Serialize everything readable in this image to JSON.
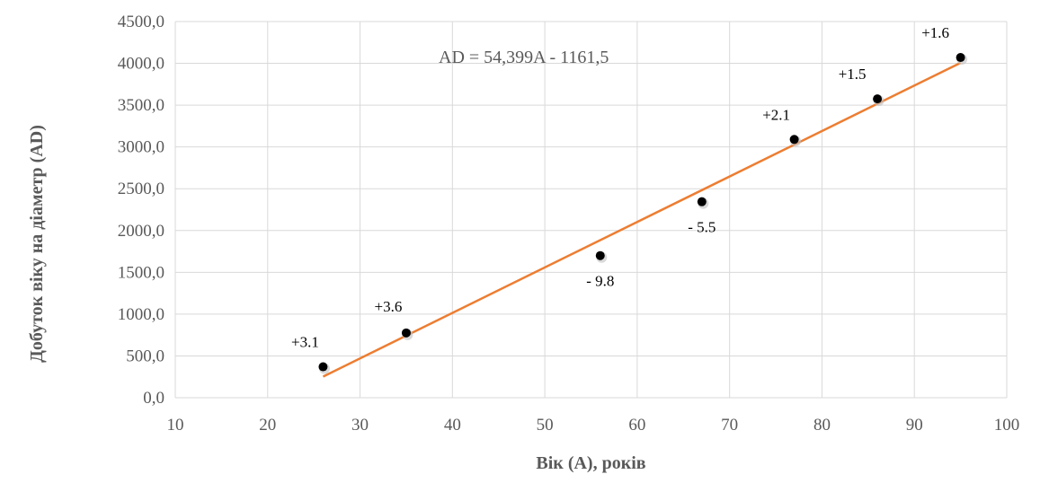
{
  "chart_data": {
    "type": "scatter",
    "title": "",
    "xlabel": "Вік (А), років",
    "ylabel": "Добуток віку на діаметр (AD)",
    "xlim": [
      10,
      100
    ],
    "ylim": [
      0,
      4500
    ],
    "x_ticks": [
      "10",
      "20",
      "30",
      "40",
      "50",
      "60",
      "70",
      "80",
      "90",
      "100"
    ],
    "y_ticks": [
      "0,0",
      "500,0",
      "1000,0",
      "1500,0",
      "2000,0",
      "2500,0",
      "3000,0",
      "3500,0",
      "4000,0",
      "4500,0"
    ],
    "grid": true,
    "series": [
      {
        "points": [
          {
            "x": 26,
            "y": 370,
            "label": "+3.1"
          },
          {
            "x": 35,
            "y": 775,
            "label": "+3.6"
          },
          {
            "x": 56,
            "y": 1700,
            "label": "- 9.8"
          },
          {
            "x": 67,
            "y": 2345,
            "label": "- 5.5"
          },
          {
            "x": 77,
            "y": 3090,
            "label": "+2.1"
          },
          {
            "x": 86,
            "y": 3575,
            "label": "+1.5"
          },
          {
            "x": 95,
            "y": 4070,
            "label": "+1.6"
          }
        ],
        "color": "#000000"
      }
    ],
    "trendline": {
      "slope": 54.399,
      "intercept": -1161.5,
      "x_range": [
        26,
        95
      ],
      "equation": "AD = 54,399A - 1161,5",
      "color": "#ed7d31"
    }
  }
}
